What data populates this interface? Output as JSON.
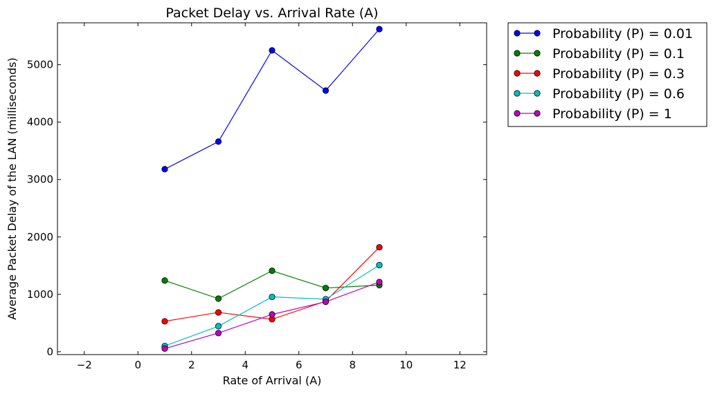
{
  "chart_data": {
    "type": "line",
    "title": "Packet Delay vs. Arrival Rate (A)",
    "xlabel": "Rate of Arrival (A)",
    "ylabel": "Average Packet Delay of the LAN (milliseconds)",
    "xlim": [
      -3,
      13
    ],
    "ylim": [
      -50,
      5730
    ],
    "xticks": [
      -2,
      0,
      2,
      4,
      6,
      8,
      10,
      12
    ],
    "yticks": [
      0,
      1000,
      2000,
      3000,
      4000,
      5000
    ],
    "xtick_labels": [
      "−2",
      "0",
      "2",
      "4",
      "6",
      "8",
      "10",
      "12"
    ],
    "ytick_labels": [
      "0",
      "1000",
      "2000",
      "3000",
      "4000",
      "5000"
    ],
    "legend_position": "outside-top-right",
    "grid": false,
    "x": [
      1,
      3,
      5,
      7,
      9
    ],
    "series": [
      {
        "name": "Probability (P) = 0.01",
        "color": "#0000ff",
        "values": [
          3180,
          3660,
          5250,
          4550,
          5620
        ]
      },
      {
        "name": "Probability (P) = 0.1",
        "color": "#008000",
        "values": [
          1240,
          925,
          1410,
          1110,
          1160
        ]
      },
      {
        "name": "Probability (P) = 0.3",
        "color": "#ff0000",
        "values": [
          530,
          685,
          565,
          880,
          1820
        ]
      },
      {
        "name": "Probability (P) = 0.6",
        "color": "#00bfbf",
        "values": [
          100,
          445,
          955,
          915,
          1510
        ]
      },
      {
        "name": "Probability (P) = 1",
        "color": "#bf00bf",
        "values": [
          55,
          325,
          650,
          870,
          1215
        ]
      }
    ]
  }
}
